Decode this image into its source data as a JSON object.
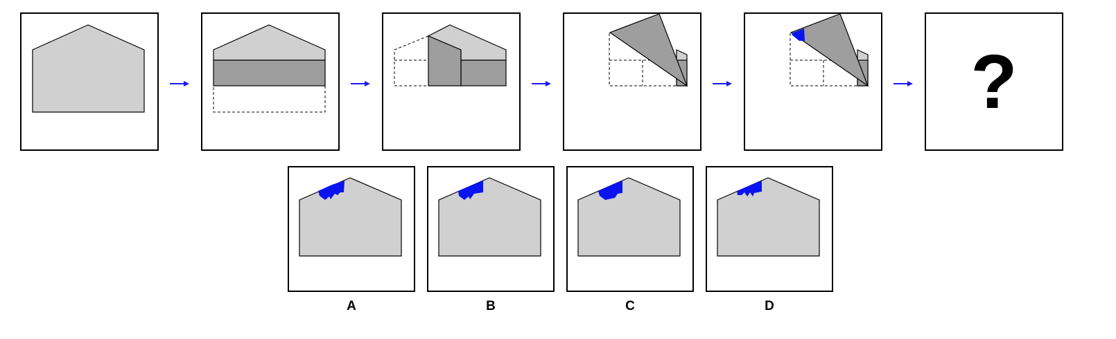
{
  "question_mark": "?",
  "options": [
    {
      "label": "A"
    },
    {
      "label": "B"
    },
    {
      "label": "C"
    },
    {
      "label": "D"
    }
  ],
  "colors": {
    "paper": "#d0d0d0",
    "folded": "#9e9e9e",
    "punch": "#0a14f0",
    "arrow": "#1a1aff",
    "outline": "#000000"
  }
}
